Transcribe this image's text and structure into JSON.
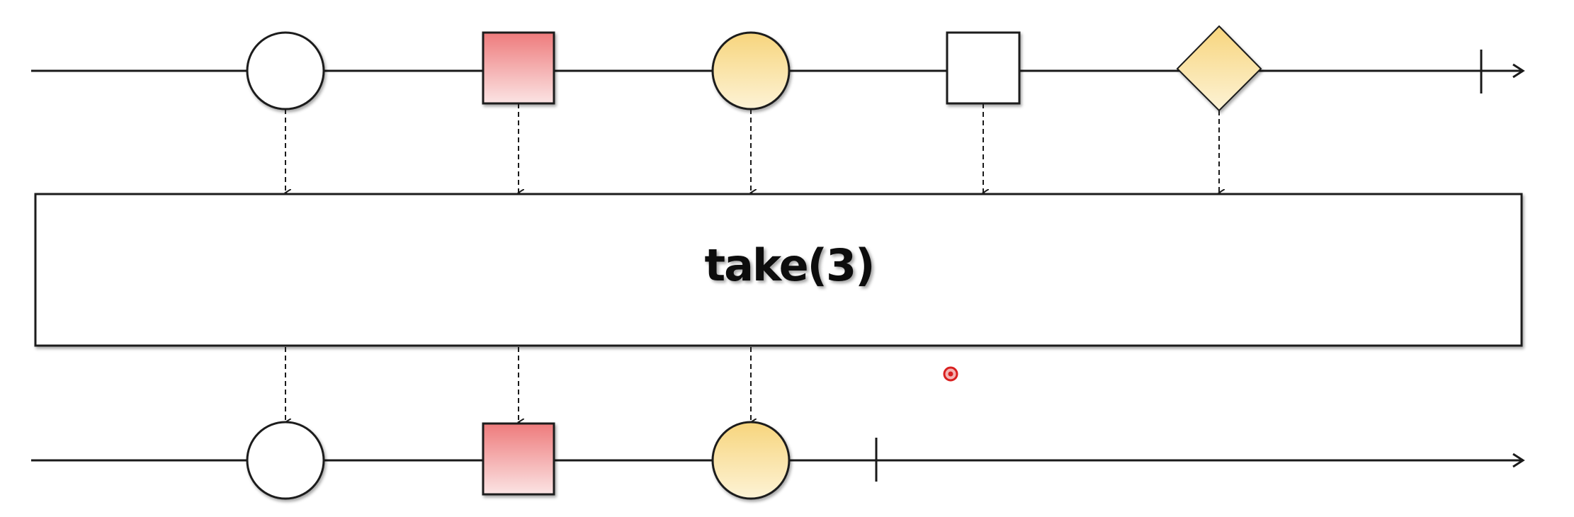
{
  "operator": {
    "label": "take(3)"
  },
  "colors": {
    "line": "#1a1a1a",
    "red_top": "#ee7b7c",
    "red_bottom": "#fbe4e4",
    "yellow_top": "#f7d57d",
    "yellow_bottom": "#fdf3d6",
    "white": "#ffffff",
    "cursor_ring": "#d92020"
  },
  "input_stream": {
    "items": [
      {
        "shape": "circle",
        "fill": "white"
      },
      {
        "shape": "square",
        "fill": "red"
      },
      {
        "shape": "circle",
        "fill": "yellow"
      },
      {
        "shape": "square",
        "fill": "white"
      },
      {
        "shape": "diamond",
        "fill": "yellow"
      }
    ],
    "completes": true
  },
  "output_stream": {
    "items": [
      {
        "shape": "circle",
        "fill": "white"
      },
      {
        "shape": "square",
        "fill": "red"
      },
      {
        "shape": "circle",
        "fill": "yellow"
      }
    ],
    "completes": true
  }
}
